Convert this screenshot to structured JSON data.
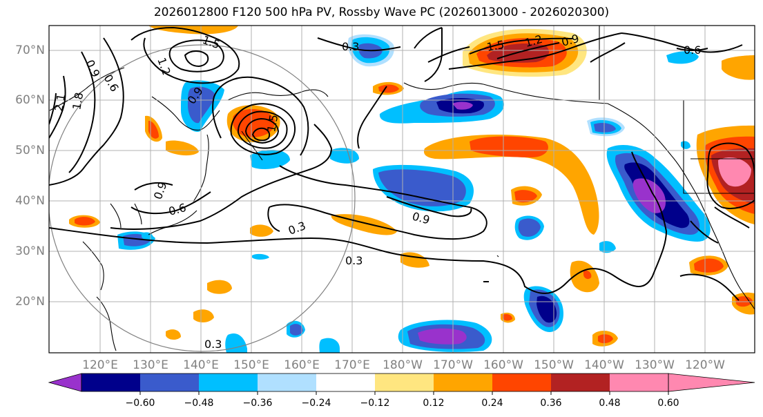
{
  "title": "2026012800 F120 500 hPa PV, Rossby Wave PC (2026013000 - 2026020300)",
  "map": {
    "region": "North Pacific",
    "lat_labels": [
      "70°N",
      "60°N",
      "50°N",
      "40°N",
      "30°N",
      "20°N"
    ],
    "lon_labels": [
      "120°E",
      "130°E",
      "140°E",
      "150°E",
      "160°E",
      "170°E",
      "180°W",
      "170°W",
      "160°W",
      "150°W",
      "140°W",
      "130°W",
      "120°W"
    ],
    "contour_labels": [
      "0.3",
      "0.3",
      "0.3",
      "0.3",
      "0.6",
      "0.6",
      "0.6",
      "0.9",
      "0.9",
      "0.9",
      "0.9",
      "0.9",
      "1.2",
      "1.2",
      "1.5",
      "1.5",
      "1.5",
      "1.8",
      "2.1"
    ]
  },
  "colorbar": {
    "ticks": [
      "−0.60",
      "−0.48",
      "−0.36",
      "−0.24",
      "−0.12",
      "0.12",
      "0.24",
      "0.36",
      "0.48",
      "0.60"
    ],
    "colors": [
      "#9932CC",
      "#00008B",
      "#3A5BCC",
      "#00BFFF",
      "#B0E0FF",
      "#FFFFFF",
      "#FFE680",
      "#FFA500",
      "#FF4500",
      "#B22222",
      "#FF88B0"
    ]
  }
}
